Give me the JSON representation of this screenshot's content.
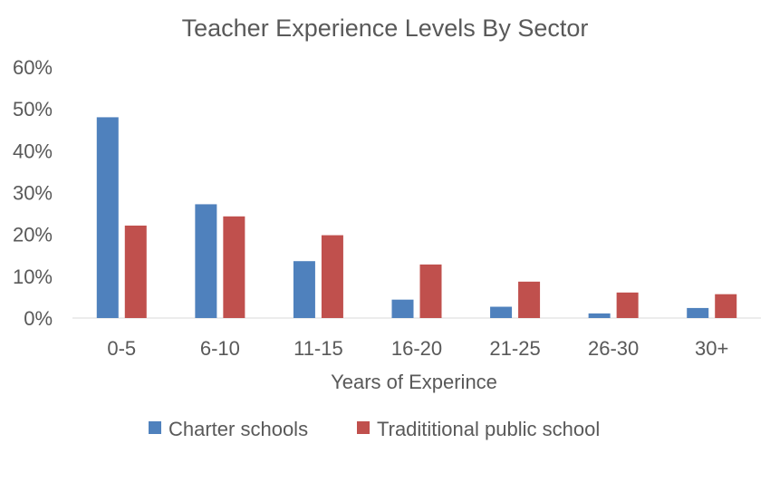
{
  "chart_data": {
    "type": "bar",
    "title": "Teacher Experience Levels By Sector",
    "xlabel": "Years of Experince",
    "ylabel": "",
    "categories": [
      "0-5",
      "6-10",
      "11-15",
      "16-20",
      "21-25",
      "26-30",
      "30+"
    ],
    "y_ticks": [
      "0%",
      "10%",
      "20%",
      "30%",
      "40%",
      "50%",
      "60%"
    ],
    "ylim": [
      0,
      60
    ],
    "grid": false,
    "legend_position": "bottom",
    "series": [
      {
        "name": "Charter schools",
        "color": "#4f81bd",
        "values": [
          48.0,
          27.2,
          13.6,
          4.4,
          2.7,
          1.1,
          2.4
        ]
      },
      {
        "name": "Tradititional public school",
        "color": "#c0504d",
        "values": [
          22.1,
          24.3,
          19.8,
          12.8,
          8.7,
          6.1,
          5.7
        ]
      }
    ]
  }
}
